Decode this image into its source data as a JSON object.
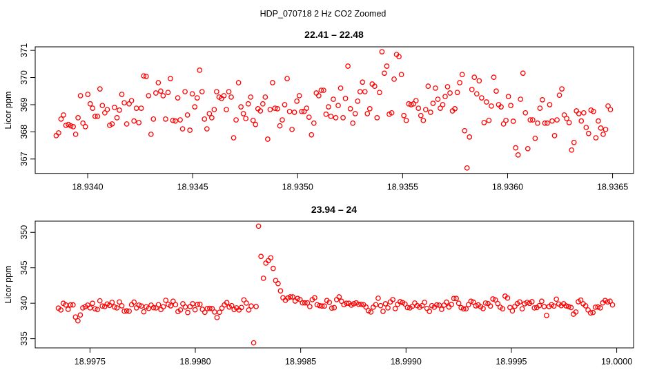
{
  "title": "HDP_070718  2 Hz CO2 Zoomed",
  "chart_data": [
    {
      "type": "scatter",
      "title": "22.41 – 22.48",
      "xlabel": "",
      "ylabel": "Licor ppm",
      "xlim": [
        18.93375,
        18.9366
      ],
      "ylim": [
        366.47,
        371.13
      ],
      "x_ticks": [
        "18.9340",
        "18.9345",
        "18.9350",
        "18.9355",
        "18.9360",
        "18.9365"
      ],
      "x_tick_values": [
        18.934,
        18.9345,
        18.935,
        18.9355,
        18.936,
        18.9365
      ],
      "y_ticks": [
        "367",
        "368",
        "369",
        "370",
        "371"
      ],
      "y_tick_values": [
        367,
        368,
        369,
        370,
        371
      ],
      "grid": false,
      "marker": "open-circle",
      "color": "#ff0000",
      "x_first": 18.93385,
      "x_last": 18.93649,
      "y": [
        367.86,
        367.96,
        368.47,
        368.62,
        368.24,
        368.27,
        368.22,
        368.19,
        367.91,
        368.52,
        369.33,
        368.32,
        368.19,
        369.38,
        369.03,
        368.87,
        368.57,
        368.57,
        369.58,
        368.97,
        368.7,
        368.82,
        368.24,
        368.29,
        368.9,
        368.52,
        368.8,
        369.38,
        369.07,
        368.29,
        369.03,
        369.15,
        368.4,
        368.87,
        368.34,
        368.87,
        370.06,
        370.04,
        369.33,
        367.91,
        368.47,
        369.43,
        369.81,
        369.5,
        369.33,
        368.47,
        369.45,
        369.96,
        368.42,
        368.4,
        369.25,
        368.44,
        368.11,
        369.48,
        368.62,
        368.06,
        369.4,
        368.92,
        369.25,
        370.27,
        369.48,
        368.47,
        368.11,
        368.67,
        368.52,
        368.82,
        369.48,
        369.28,
        369.23,
        369.33,
        368.82,
        369.48,
        369.28,
        367.78,
        368.44,
        369.81,
        368.92,
        368.67,
        368.49,
        369.03,
        369.28,
        368.42,
        368.27,
        368.85,
        368.77,
        369.03,
        369.28,
        367.73,
        368.82,
        369.81,
        368.87,
        368.85,
        368.22,
        368.44,
        369.0,
        369.96,
        368.75,
        368.09,
        368.72,
        369.13,
        369.33,
        368.75,
        368.75,
        368.87,
        368.54,
        367.89,
        368.32,
        369.43,
        369.33,
        369.53,
        369.53,
        368.65,
        368.92,
        368.57,
        369.2,
        368.52,
        368.97,
        369.61,
        368.52,
        369.23,
        370.42,
        368.85,
        368.32,
        368.67,
        369.13,
        369.48,
        369.83,
        369.48,
        368.67,
        368.85,
        369.76,
        369.68,
        368.52,
        369.45,
        370.95,
        370.16,
        370.42,
        368.65,
        368.7,
        369.94,
        370.85,
        370.77,
        370.11,
        368.6,
        368.42,
        369.03,
        369.0,
        369.03,
        369.15,
        368.87,
        368.6,
        368.42,
        368.82,
        369.68,
        368.72,
        369.05,
        369.61,
        369.2,
        368.87,
        369.0,
        369.3,
        369.66,
        369.43,
        368.77,
        368.85,
        369.45,
        369.81,
        370.11,
        368.04,
        366.67,
        367.81,
        369.56,
        370.01,
        369.4,
        369.88,
        369.25,
        368.34,
        369.1,
        368.42,
        368.95,
        370.01,
        369.5,
        369.0,
        368.92,
        368.29,
        368.42,
        369.3,
        368.97,
        368.39,
        367.41,
        367.15,
        369.2,
        370.16,
        368.7,
        367.38,
        368.44,
        368.44,
        367.76,
        368.32,
        368.87,
        369.18,
        368.32,
        368.32,
        369.0,
        368.4,
        367.86,
        368.44,
        369.35,
        369.58,
        368.62,
        368.49,
        368.34,
        367.33,
        367.61,
        368.77,
        368.67,
        368.4,
        368.7,
        368.16,
        367.94,
        368.8,
        368.75,
        367.78,
        368.4,
        368.14,
        367.91,
        368.09,
        368.95,
        368.82
      ]
    },
    {
      "type": "scatter",
      "title": "23.94 – 24",
      "xlabel": "",
      "ylabel": "Licor ppm",
      "xlim": [
        18.99724,
        19.00008
      ],
      "ylim": [
        333.7,
        351.58
      ],
      "x_ticks": [
        "18.9975",
        "18.9980",
        "18.9985",
        "18.9990",
        "18.9995",
        "19.0000"
      ],
      "x_tick_values": [
        18.9975,
        18.998,
        18.9985,
        18.999,
        18.9995,
        19.0
      ],
      "y_ticks": [
        "335",
        "340",
        "345",
        "350"
      ],
      "y_tick_values": [
        335,
        340,
        345,
        350
      ],
      "grid": false,
      "marker": "open-circle",
      "color": "#ff0000",
      "x_first": 18.99735,
      "x_last": 18.99998,
      "y": [
        339.31,
        339.05,
        339.99,
        339.76,
        339.14,
        339.76,
        339.76,
        338.05,
        337.52,
        338.34,
        339.34,
        339.5,
        339.73,
        339.34,
        339.99,
        339.21,
        339.11,
        340.34,
        339.6,
        339.53,
        339.89,
        339.7,
        340.12,
        339.47,
        339.34,
        340.18,
        339.63,
        338.88,
        338.92,
        338.88,
        339.79,
        340.15,
        339.34,
        339.73,
        339.6,
        338.79,
        339.5,
        339.27,
        339.73,
        339.37,
        339.34,
        339.79,
        339.11,
        339.5,
        340.41,
        339.85,
        339.63,
        340.28,
        339.79,
        338.82,
        339.05,
        339.92,
        339.47,
        338.69,
        339.53,
        339.92,
        339.08,
        339.82,
        339.85,
        339.14,
        338.72,
        339.24,
        339.27,
        339.24,
        338.76,
        337.98,
        338.72,
        339.31,
        339.76,
        340.09,
        339.47,
        339.66,
        339.11,
        339.34,
        339.05,
        339.4,
        340.47,
        340.02,
        339.05,
        339.6,
        334.41,
        339.53,
        350.87,
        346.6,
        343.52,
        345.66,
        346.01,
        346.4,
        344.91,
        343.2,
        342.77,
        341.74,
        340.77,
        340.41,
        340.73,
        340.89,
        340.89,
        340.31,
        340.67,
        340.51,
        340.05,
        340.05,
        340.05,
        339.53,
        340.51,
        340.77,
        339.79,
        339.66,
        339.6,
        339.6,
        340.38,
        340.12,
        339.31,
        339.37,
        340.51,
        340.89,
        340.28,
        339.79,
        339.99,
        339.99,
        339.73,
        339.92,
        340.05,
        339.85,
        339.85,
        339.79,
        339.47,
        338.95,
        338.76,
        339.44,
        339.79,
        340.7,
        339.66,
        338.85,
        339.92,
        339.34,
        340.18,
        340.51,
        339.24,
        339.85,
        340.21,
        340.09,
        339.89,
        339.4,
        339.34,
        339.56,
        340.02,
        339.66,
        339.44,
        339.66,
        340.12,
        339.27,
        338.85,
        339.66,
        339.44,
        339.76,
        339.73,
        339.14,
        339.73,
        340.15,
        339.47,
        339.82,
        340.67,
        340.67,
        339.99,
        339.37,
        339.21,
        339.21,
        339.79,
        340.28,
        340.15,
        339.63,
        339.76,
        339.5,
        339.24,
        340.02,
        339.95,
        339.6,
        340.6,
        340.47,
        339.95,
        339.44,
        339.21,
        341.0,
        340.73,
        339.4,
        338.92,
        339.56,
        339.95,
        340.18,
        339.21,
        339.92,
        340.12,
        339.99,
        340.21,
        339.34,
        339.4,
        339.66,
        340.28,
        339.53,
        338.27,
        339.53,
        339.79,
        339.6,
        340.57,
        339.89,
        339.66,
        339.92,
        339.63,
        339.53,
        339.4,
        338.46,
        338.76,
        340.21,
        340.44,
        339.92,
        339.63,
        339.05,
        338.63,
        338.69,
        339.44,
        339.47,
        339.34,
        340.05,
        340.38,
        340.18,
        340.28,
        339.76
      ]
    }
  ]
}
